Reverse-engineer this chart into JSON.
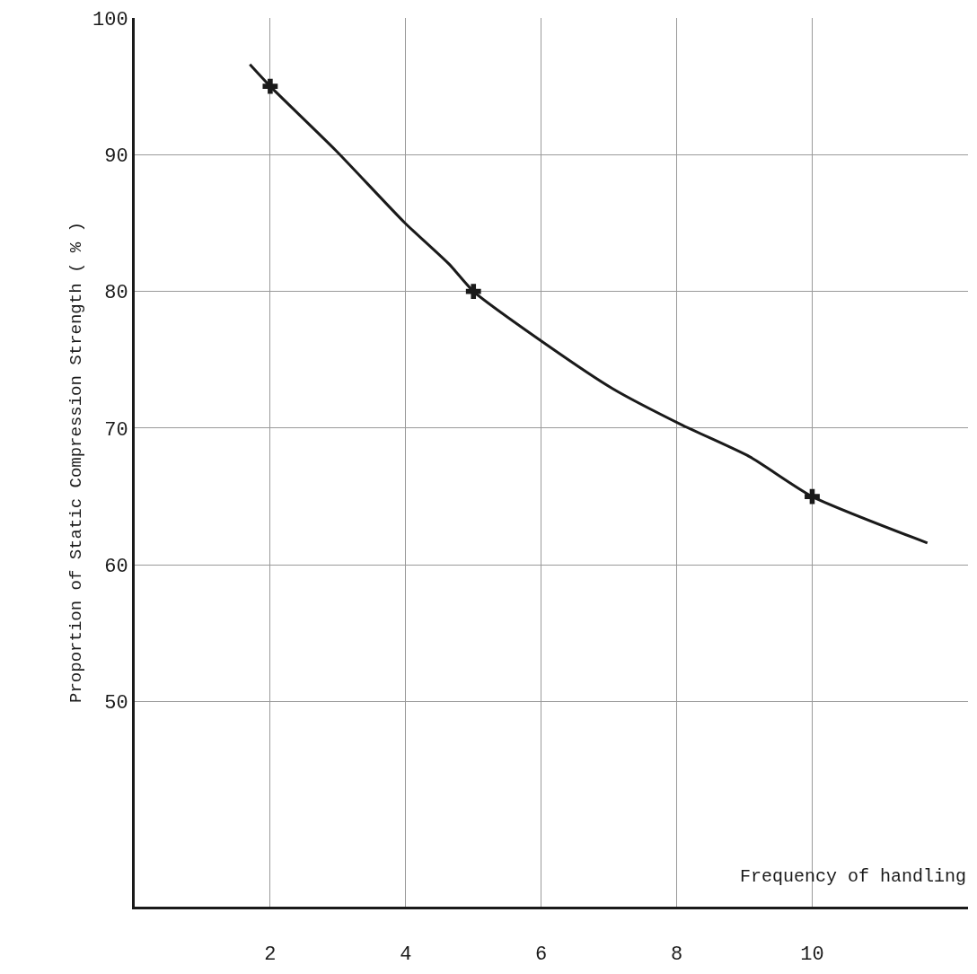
{
  "chart_data": {
    "type": "line",
    "xlabel": "Frequency of handling",
    "ylabel": "Proportion of Static Compression Strength ( % )",
    "xlim": [
      0,
      12.3
    ],
    "ylim": [
      35,
      100
    ],
    "xticks": [
      2,
      4,
      6,
      8,
      10
    ],
    "yticks": [
      50,
      60,
      70,
      80,
      90,
      100
    ],
    "grid": true,
    "series": [
      {
        "color": "#1a1a1a",
        "marker": "none",
        "line_style": "solid",
        "x": [
          1.7,
          2,
          2.97,
          3.99,
          4.64,
          5,
          6.08,
          7.05,
          8.09,
          9.08,
          10,
          11.7
        ],
        "values": [
          96.6,
          95,
          90.3,
          85,
          82,
          80,
          76.1,
          72.9,
          70.2,
          67.9,
          65,
          61.6
        ]
      },
      {
        "type": "scatter",
        "color": "#1a1a1a",
        "marker": "cross",
        "x": [
          2,
          5,
          10
        ],
        "values": [
          95,
          80,
          65
        ]
      }
    ]
  }
}
